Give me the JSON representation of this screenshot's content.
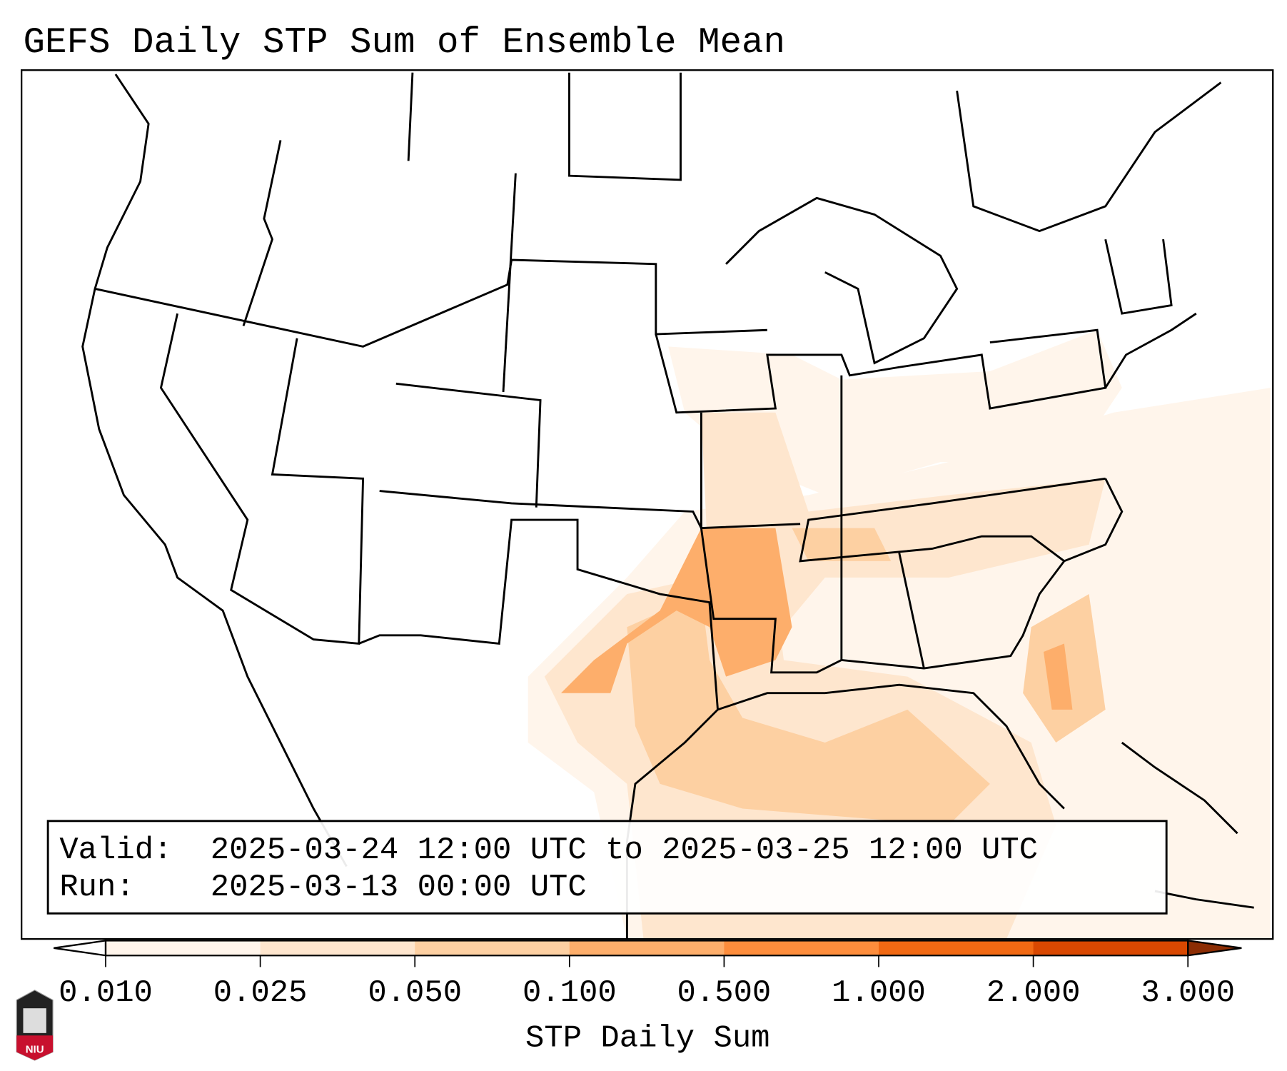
{
  "title": "GEFS Daily STP Sum of Ensemble Mean",
  "info_box": {
    "valid_label": "Valid:",
    "valid_value": "2025-03-24 12:00 UTC to 2025-03-25 12:00 UTC",
    "run_label": "Run:",
    "run_value": "2025-03-13 00:00 UTC"
  },
  "colorbar": {
    "label": "STP Daily Sum",
    "ticks": [
      "0.010",
      "0.025",
      "0.050",
      "0.100",
      "0.500",
      "1.000",
      "2.000",
      "3.000"
    ],
    "colors": [
      "#fff5eb",
      "#fee6ce",
      "#fdd0a2",
      "#fdae6b",
      "#fd8d3c",
      "#f16913",
      "#d94801"
    ],
    "under_color": "#ffffff",
    "over_color": "#8c2d04"
  },
  "logo": {
    "text": "NIU",
    "color": "#c8102e"
  }
}
